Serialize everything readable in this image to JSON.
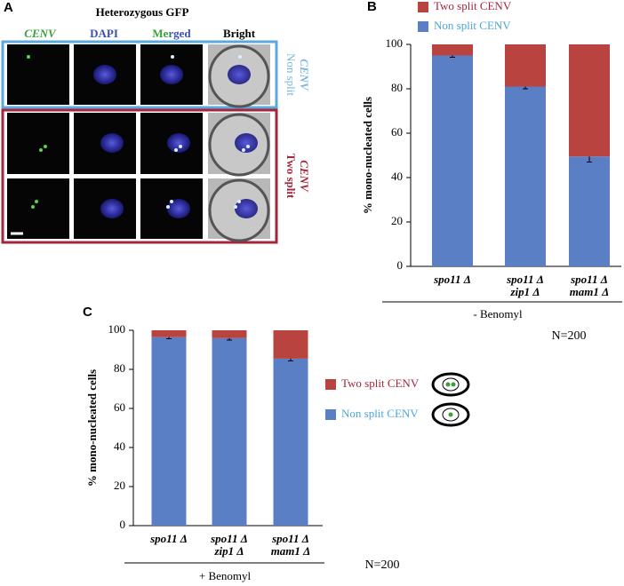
{
  "panel_a": {
    "label": "A",
    "title": "Heterozygous GFP",
    "columns": [
      "CENV",
      "DAPI",
      "Merged",
      "Bright"
    ],
    "row_labels": [
      [
        "Non split",
        "CENV"
      ],
      [
        "Two split",
        "CENV"
      ]
    ]
  },
  "chart_data": [
    {
      "type": "stacked_bar",
      "label": "B",
      "ylabel": "% mono-nucleated cells",
      "xlabel": "- Benomyl",
      "annotation": "N=200",
      "categories": [
        [
          "spo11 Δ"
        ],
        [
          "spo11 Δ",
          "zip1 Δ"
        ],
        [
          "spo11 Δ",
          "mam1 Δ"
        ]
      ],
      "series": [
        {
          "name": "Non split CENV",
          "color": "#5b7fc4",
          "values": [
            95,
            81,
            49.5
          ],
          "errors": [
            0.8,
            1,
            2.5
          ]
        },
        {
          "name": "Two split CENV",
          "color": "#b8433f",
          "values": [
            5,
            19,
            50.5
          ]
        }
      ],
      "ylim": [
        0,
        100
      ],
      "yticks": [
        0,
        20,
        40,
        60,
        80,
        100
      ]
    },
    {
      "type": "stacked_bar",
      "label": "C",
      "ylabel": "% mono-nucleated cells",
      "xlabel": "+ Benomyl",
      "annotation": "N=200",
      "categories": [
        [
          "spo11 Δ"
        ],
        [
          "spo11 Δ",
          "zip1 Δ"
        ],
        [
          "spo11 Δ",
          "mam1 Δ"
        ]
      ],
      "series": [
        {
          "name": "Non split CENV",
          "color": "#5b7fc4",
          "values": [
            96.5,
            96,
            85.5
          ],
          "errors": [
            0.8,
            1,
            1.2
          ]
        },
        {
          "name": "Two split CENV",
          "color": "#b8433f",
          "values": [
            3.5,
            4,
            14.5
          ]
        }
      ],
      "ylim": [
        0,
        100
      ],
      "yticks": [
        0,
        20,
        40,
        60,
        80,
        100
      ]
    }
  ]
}
